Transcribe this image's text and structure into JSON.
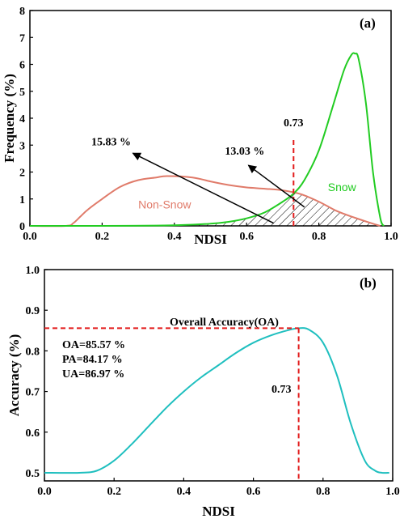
{
  "chart_data": [
    {
      "panel": "(a)",
      "type": "line",
      "xlabel": "NDSI",
      "ylabel": "Frequency (%)",
      "xlim": [
        0.0,
        1.0
      ],
      "ylim": [
        0,
        8
      ],
      "xticks": [
        "0.0",
        "0.2",
        "0.4",
        "0.6",
        "0.8",
        "1.0"
      ],
      "yticks": [
        "0",
        "1",
        "2",
        "3",
        "4",
        "5",
        "6",
        "7",
        "8"
      ],
      "threshold": 0.73,
      "threshold_label": "0.73",
      "series": [
        {
          "name": "Non-Snow",
          "color": "#e07b6a",
          "x": [
            0.0,
            0.1,
            0.12,
            0.14,
            0.16,
            0.2,
            0.25,
            0.3,
            0.35,
            0.38,
            0.45,
            0.5,
            0.55,
            0.6,
            0.65,
            0.7,
            0.75,
            0.8,
            0.85,
            0.9,
            0.95,
            0.97
          ],
          "values": [
            0.0,
            0.0,
            0.1,
            0.35,
            0.6,
            1.0,
            1.45,
            1.7,
            1.8,
            1.85,
            1.8,
            1.65,
            1.52,
            1.43,
            1.38,
            1.32,
            1.18,
            0.9,
            0.55,
            0.3,
            0.08,
            0.0
          ]
        },
        {
          "name": "Snow",
          "color": "#22cc22",
          "x": [
            0.0,
            0.2,
            0.4,
            0.5,
            0.55,
            0.6,
            0.65,
            0.7,
            0.73,
            0.76,
            0.8,
            0.84,
            0.87,
            0.89,
            0.9,
            0.91,
            0.93,
            0.95,
            0.97,
            0.98
          ],
          "values": [
            0.0,
            0.0,
            0.02,
            0.08,
            0.15,
            0.28,
            0.5,
            0.9,
            1.2,
            1.7,
            2.8,
            4.5,
            5.8,
            6.35,
            6.4,
            6.2,
            4.6,
            2.0,
            0.3,
            0.0
          ]
        }
      ],
      "annotations": [
        {
          "text": "15.83 %"
        },
        {
          "text": "13.03 %"
        }
      ]
    },
    {
      "panel": "(b)",
      "type": "line",
      "xlabel": "NDSI",
      "ylabel": "Accuracy (%)",
      "xlim": [
        0.0,
        1.0
      ],
      "ylim": [
        0.48,
        1.0
      ],
      "xticks": [
        "0.0",
        "0.2",
        "0.4",
        "0.6",
        "0.8",
        "1.0"
      ],
      "yticks": [
        "0.5",
        "0.6",
        "0.7",
        "0.8",
        "0.9",
        "1.0"
      ],
      "threshold": 0.73,
      "threshold_label": "0.73",
      "peak_value": 0.8557,
      "peak_label": "Overall Accuracy(OA)",
      "metrics": [
        "OA=85.57 %",
        "PA=84.17 %",
        "UA=86.97 %"
      ],
      "series": [
        {
          "color": "#1fbfbf",
          "x": [
            0.0,
            0.1,
            0.15,
            0.2,
            0.25,
            0.3,
            0.35,
            0.4,
            0.45,
            0.5,
            0.55,
            0.6,
            0.65,
            0.7,
            0.73,
            0.76,
            0.8,
            0.84,
            0.88,
            0.92,
            0.95,
            0.97,
            0.99
          ],
          "values": [
            0.5,
            0.5,
            0.505,
            0.53,
            0.57,
            0.615,
            0.66,
            0.7,
            0.735,
            0.765,
            0.795,
            0.82,
            0.838,
            0.851,
            0.8557,
            0.852,
            0.82,
            0.74,
            0.62,
            0.53,
            0.505,
            0.5,
            0.5
          ]
        }
      ]
    }
  ]
}
